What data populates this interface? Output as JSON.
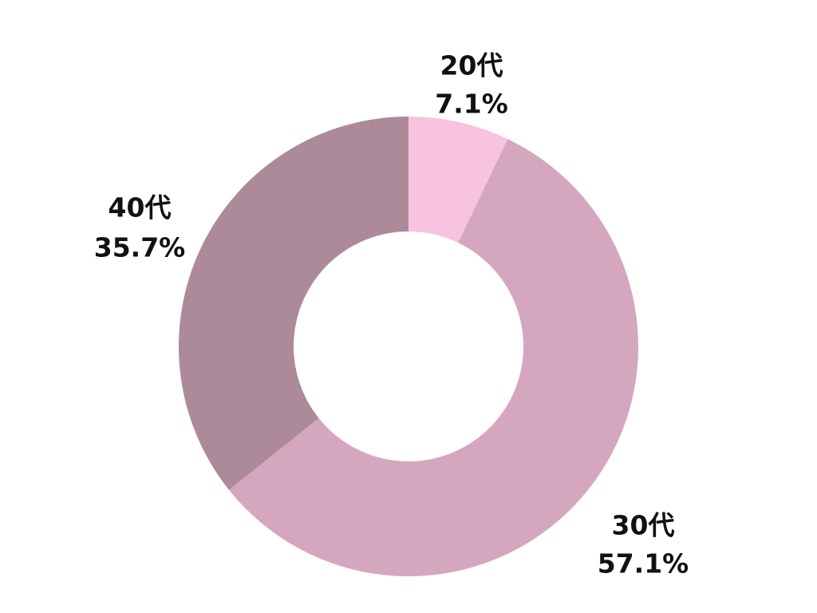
{
  "chart_data": {
    "type": "pie",
    "donut": true,
    "title": "",
    "start_angle_deg": 0,
    "direction": "clockwise",
    "slices": [
      {
        "category": "20代",
        "value": 7.1,
        "value_label": "7.1%",
        "color": "#f7c3df"
      },
      {
        "category": "30代",
        "value": 57.1,
        "value_label": "57.1%",
        "color": "#d5a7bf"
      },
      {
        "category": "40代",
        "value": 35.7,
        "value_label": "35.7%",
        "color": "#ad8a9a"
      }
    ],
    "legend": "none"
  }
}
